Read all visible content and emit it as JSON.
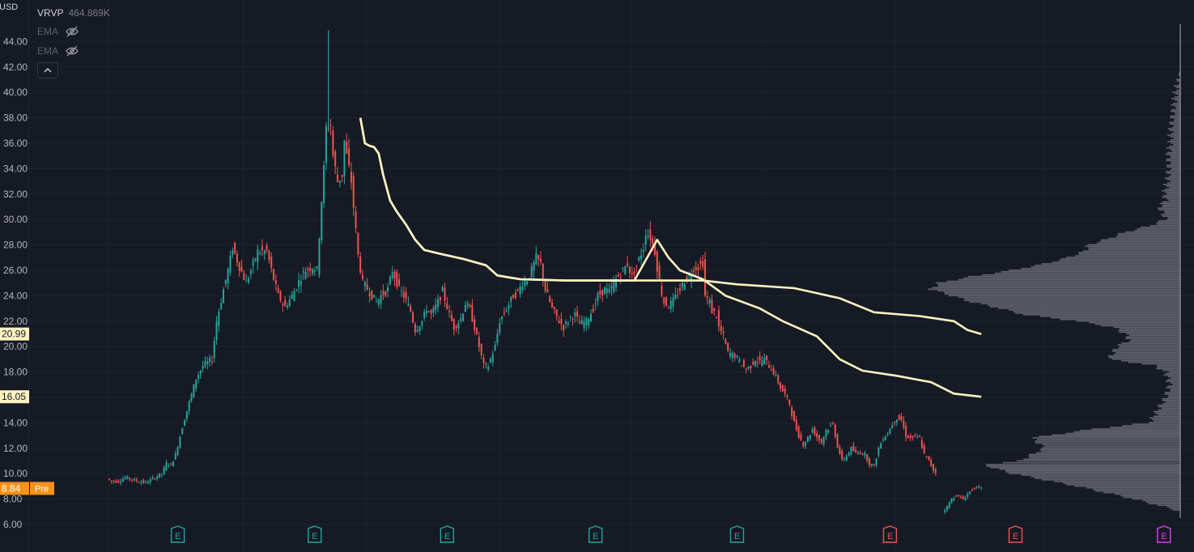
{
  "header": {
    "currency": "USD",
    "indicators": [
      {
        "name": "VRVP",
        "value": "464.869K"
      },
      {
        "name": "EMA",
        "value": ""
      },
      {
        "name": "EMA",
        "value": ""
      }
    ]
  },
  "colors": {
    "background": "#161a25",
    "up": "#26a69a",
    "down": "#ef5350",
    "ema": "#fff3c0",
    "volume_profile": "#7c7f88",
    "earnings_past": "#26a69a",
    "earnings_future": "#ef5350",
    "earnings_upcoming": "#e040fb",
    "price_tag_ema": "#fff3c0",
    "price_tag_last": "#f7931a"
  },
  "chart_data": {
    "type": "candlestick",
    "y_axis": {
      "ticks": [
        "6.00",
        "8.00",
        "10.00",
        "12.00",
        "14.00",
        "16.00",
        "18.00",
        "20.00",
        "22.00",
        "24.00",
        "26.00",
        "28.00",
        "30.00",
        "32.00",
        "34.00",
        "36.00",
        "38.00",
        "40.00",
        "42.00",
        "44.00"
      ],
      "ylim": [
        5.2,
        46.0
      ]
    },
    "price_path": [
      [
        0,
        9.6
      ],
      [
        2,
        9.4
      ],
      [
        5,
        9.4
      ],
      [
        8,
        9.7
      ],
      [
        10,
        9.6
      ],
      [
        14,
        9.4
      ],
      [
        17,
        9.3
      ],
      [
        20,
        9.6
      ],
      [
        24,
        10.0
      ],
      [
        26,
        10.8
      ],
      [
        28,
        10.7
      ],
      [
        30,
        11.5
      ],
      [
        33,
        13.7
      ],
      [
        36,
        15.6
      ],
      [
        39,
        17.5
      ],
      [
        42,
        18.5
      ],
      [
        46,
        19.0
      ],
      [
        48,
        22.0
      ],
      [
        51,
        24.5
      ],
      [
        53,
        26.0
      ],
      [
        55,
        27.8
      ],
      [
        58,
        26.3
      ],
      [
        61,
        25.0
      ],
      [
        63,
        26.0
      ],
      [
        66,
        27.5
      ],
      [
        70,
        27.5
      ],
      [
        72,
        26.0
      ],
      [
        75,
        24.0
      ],
      [
        78,
        23.1
      ],
      [
        81,
        24.0
      ],
      [
        85,
        25.5
      ],
      [
        87,
        26.0
      ],
      [
        90,
        26.3
      ],
      [
        92,
        26.0
      ],
      [
        94,
        31.5
      ],
      [
        95,
        34.0
      ],
      [
        96,
        37.2
      ],
      [
        98,
        37.5
      ],
      [
        99,
        35.0
      ],
      [
        101,
        33.0
      ],
      [
        103,
        33.5
      ],
      [
        104,
        36.2
      ],
      [
        105,
        35.0
      ],
      [
        107,
        33.0
      ],
      [
        108,
        31.0
      ],
      [
        110,
        27.2
      ],
      [
        112,
        25.0
      ],
      [
        115,
        24.3
      ],
      [
        118,
        23.5
      ],
      [
        120,
        24.0
      ],
      [
        123,
        24.5
      ],
      [
        125,
        26.0
      ],
      [
        128,
        24.5
      ],
      [
        130,
        24.0
      ],
      [
        133,
        22.8
      ],
      [
        135,
        21.3
      ],
      [
        138,
        22.0
      ],
      [
        140,
        23.0
      ],
      [
        142,
        22.5
      ],
      [
        145,
        23.5
      ],
      [
        147,
        24.4
      ],
      [
        150,
        22.5
      ],
      [
        152,
        21.5
      ],
      [
        155,
        22.2
      ],
      [
        157,
        23.4
      ],
      [
        159,
        22.9
      ],
      [
        161,
        21.5
      ],
      [
        163,
        20.0
      ],
      [
        165,
        18.5
      ],
      [
        167,
        18.5
      ],
      [
        170,
        20.0
      ],
      [
        172,
        22.0
      ],
      [
        175,
        23.0
      ],
      [
        178,
        24.0
      ],
      [
        180,
        24.3
      ],
      [
        182,
        25.0
      ],
      [
        184,
        25.3
      ],
      [
        186,
        26.0
      ],
      [
        188,
        27.0
      ],
      [
        190,
        26.5
      ],
      [
        192,
        24.5
      ],
      [
        195,
        23.0
      ],
      [
        198,
        22.0
      ],
      [
        200,
        21.5
      ],
      [
        203,
        22.3
      ],
      [
        205,
        22.5
      ],
      [
        207,
        21.8
      ],
      [
        210,
        22.0
      ],
      [
        213,
        23.0
      ],
      [
        215,
        24.0
      ],
      [
        218,
        24.5
      ],
      [
        220,
        24.3
      ],
      [
        223,
        25.3
      ],
      [
        226,
        26.0
      ],
      [
        228,
        26.5
      ],
      [
        230,
        25.5
      ],
      [
        232,
        26.4
      ],
      [
        235,
        27.8
      ],
      [
        236,
        29.0
      ],
      [
        238,
        28.6
      ],
      [
        240,
        27.5
      ],
      [
        242,
        25.0
      ],
      [
        244,
        23.5
      ],
      [
        246,
        23.2
      ],
      [
        248,
        23.6
      ],
      [
        251,
        24.5
      ],
      [
        253,
        25.2
      ],
      [
        255,
        25.5
      ],
      [
        257,
        26.2
      ],
      [
        259,
        26.3
      ],
      [
        261,
        26.6
      ],
      [
        262,
        24.0
      ],
      [
        264,
        23.5
      ],
      [
        265,
        22.8
      ],
      [
        267,
        22.5
      ],
      [
        268,
        21.5
      ],
      [
        270,
        20.8
      ],
      [
        272,
        19.5
      ],
      [
        275,
        19.3
      ],
      [
        278,
        18.6
      ],
      [
        280,
        18.2
      ],
      [
        282,
        18.5
      ],
      [
        284,
        19.0
      ],
      [
        286,
        18.8
      ],
      [
        288,
        19.0
      ],
      [
        290,
        18.5
      ],
      [
        292,
        18.0
      ],
      [
        295,
        16.8
      ],
      [
        297,
        16.2
      ],
      [
        299,
        15.5
      ],
      [
        301,
        14.0
      ],
      [
        303,
        13.0
      ],
      [
        305,
        12.3
      ],
      [
        307,
        12.8
      ],
      [
        309,
        13.5
      ],
      [
        311,
        12.9
      ],
      [
        313,
        12.5
      ],
      [
        315,
        13.4
      ],
      [
        318,
        13.9
      ],
      [
        320,
        12.2
      ],
      [
        322,
        11.0
      ],
      [
        324,
        11.4
      ],
      [
        326,
        12.0
      ],
      [
        328,
        11.6
      ],
      [
        330,
        11.7
      ],
      [
        332,
        11.5
      ],
      [
        334,
        10.8
      ],
      [
        336,
        10.6
      ],
      [
        338,
        12.0
      ],
      [
        340,
        12.8
      ],
      [
        342,
        13.2
      ],
      [
        344,
        13.9
      ],
      [
        346,
        14.4
      ],
      [
        348,
        14.2
      ],
      [
        350,
        13.0
      ],
      [
        352,
        12.8
      ],
      [
        354,
        12.9
      ],
      [
        356,
        12.8
      ],
      [
        358,
        11.5
      ],
      [
        360,
        11.0
      ],
      [
        362,
        10.3
      ],
      [
        364,
        9.9
      ],
      [
        366,
        7.0
      ],
      [
        368,
        7.4
      ],
      [
        370,
        8.0
      ],
      [
        372,
        8.3
      ],
      [
        375,
        8.0
      ],
      [
        378,
        8.6
      ],
      [
        380,
        8.9
      ],
      [
        382,
        8.84
      ]
    ],
    "ema_short": [
      [
        110,
        38.0
      ],
      [
        112,
        36.0
      ],
      [
        114,
        35.8
      ],
      [
        116,
        35.7
      ],
      [
        118,
        35.2
      ],
      [
        120,
        33.5
      ],
      [
        123,
        31.5
      ],
      [
        126,
        30.6
      ],
      [
        130,
        29.6
      ],
      [
        134,
        28.4
      ],
      [
        138,
        27.6
      ],
      [
        145,
        27.3
      ],
      [
        155,
        26.9
      ],
      [
        165,
        26.4
      ],
      [
        170,
        25.6
      ],
      [
        180,
        25.3
      ],
      [
        200,
        25.2
      ],
      [
        230,
        25.2
      ],
      [
        240,
        28.4
      ],
      [
        245,
        27.0
      ],
      [
        250,
        26.0
      ],
      [
        260,
        25.3
      ],
      [
        270,
        24.0
      ],
      [
        285,
        23.0
      ],
      [
        295,
        22.0
      ],
      [
        310,
        20.8
      ],
      [
        320,
        19.0
      ],
      [
        330,
        18.1
      ],
      [
        345,
        17.7
      ],
      [
        360,
        17.2
      ],
      [
        370,
        16.3
      ],
      [
        382,
        16.05
      ]
    ],
    "ema_long": [
      [
        110,
        38.0
      ],
      [
        112,
        36.0
      ],
      [
        114,
        35.8
      ],
      [
        116,
        35.7
      ],
      [
        118,
        35.2
      ],
      [
        120,
        33.5
      ],
      [
        123,
        31.5
      ],
      [
        126,
        30.6
      ],
      [
        130,
        29.6
      ],
      [
        134,
        28.4
      ],
      [
        138,
        27.6
      ],
      [
        145,
        27.3
      ],
      [
        155,
        26.9
      ],
      [
        165,
        26.4
      ],
      [
        170,
        25.6
      ],
      [
        180,
        25.3
      ],
      [
        200,
        25.2
      ],
      [
        230,
        25.2
      ],
      [
        260,
        25.2
      ],
      [
        275,
        24.9
      ],
      [
        300,
        24.6
      ],
      [
        320,
        23.8
      ],
      [
        335,
        22.7
      ],
      [
        355,
        22.4
      ],
      [
        370,
        22.0
      ],
      [
        376,
        21.3
      ],
      [
        382,
        20.99
      ]
    ],
    "ema_last_values": [
      "20.99",
      "16.05"
    ],
    "last_price": "8.84",
    "last_price_tag": "Pre",
    "volume_profile": [
      [
        6.0,
        1473
      ],
      [
        7.0,
        1460
      ],
      [
        8.0,
        1400
      ],
      [
        9.0,
        1330
      ],
      [
        10.0,
        1250
      ],
      [
        10.7,
        1215
      ],
      [
        11.0,
        1260
      ],
      [
        12.0,
        1290
      ],
      [
        12.8,
        1275
      ],
      [
        13.5,
        1350
      ],
      [
        14.0,
        1420
      ],
      [
        15.0,
        1430
      ],
      [
        16.0,
        1440
      ],
      [
        17.0,
        1445
      ],
      [
        18.0,
        1440
      ],
      [
        18.5,
        1425
      ],
      [
        19.0,
        1370
      ],
      [
        20.0,
        1380
      ],
      [
        20.5,
        1395
      ],
      [
        21.0,
        1390
      ],
      [
        21.5,
        1375
      ],
      [
        22.0,
        1330
      ],
      [
        22.5,
        1265
      ],
      [
        23.0,
        1235
      ],
      [
        23.5,
        1200
      ],
      [
        24.0,
        1175
      ],
      [
        24.5,
        1150
      ],
      [
        25.0,
        1160
      ],
      [
        25.5,
        1200
      ],
      [
        26.0,
        1250
      ],
      [
        26.5,
        1290
      ],
      [
        27.0,
        1320
      ],
      [
        27.5,
        1340
      ],
      [
        28.0,
        1345
      ],
      [
        28.5,
        1370
      ],
      [
        29.0,
        1390
      ],
      [
        29.5,
        1420
      ],
      [
        30.0,
        1440
      ],
      [
        31.0,
        1432
      ],
      [
        31.5,
        1440
      ],
      [
        32.0,
        1438
      ],
      [
        33.0,
        1442
      ],
      [
        34.0,
        1444
      ],
      [
        35.0,
        1443
      ],
      [
        36.0,
        1446
      ],
      [
        37.0,
        1446
      ],
      [
        38.0,
        1448
      ],
      [
        39.0,
        1450
      ],
      [
        40.0,
        1452
      ],
      [
        41.0,
        1456
      ],
      [
        42.0,
        1462
      ],
      [
        44.0,
        1470
      ],
      [
        45.0,
        1473
      ]
    ],
    "earnings_markers": [
      {
        "label": "E",
        "kind": "past"
      },
      {
        "label": "E",
        "kind": "past"
      },
      {
        "label": "E",
        "kind": "past"
      },
      {
        "label": "E",
        "kind": "past"
      },
      {
        "label": "E",
        "kind": "past"
      },
      {
        "label": "E",
        "kind": "future"
      },
      {
        "label": "E",
        "kind": "future"
      },
      {
        "label": "E",
        "kind": "upcoming"
      }
    ],
    "earnings_index": [
      30,
      90,
      148,
      213,
      275,
      342,
      397,
      462
    ]
  }
}
